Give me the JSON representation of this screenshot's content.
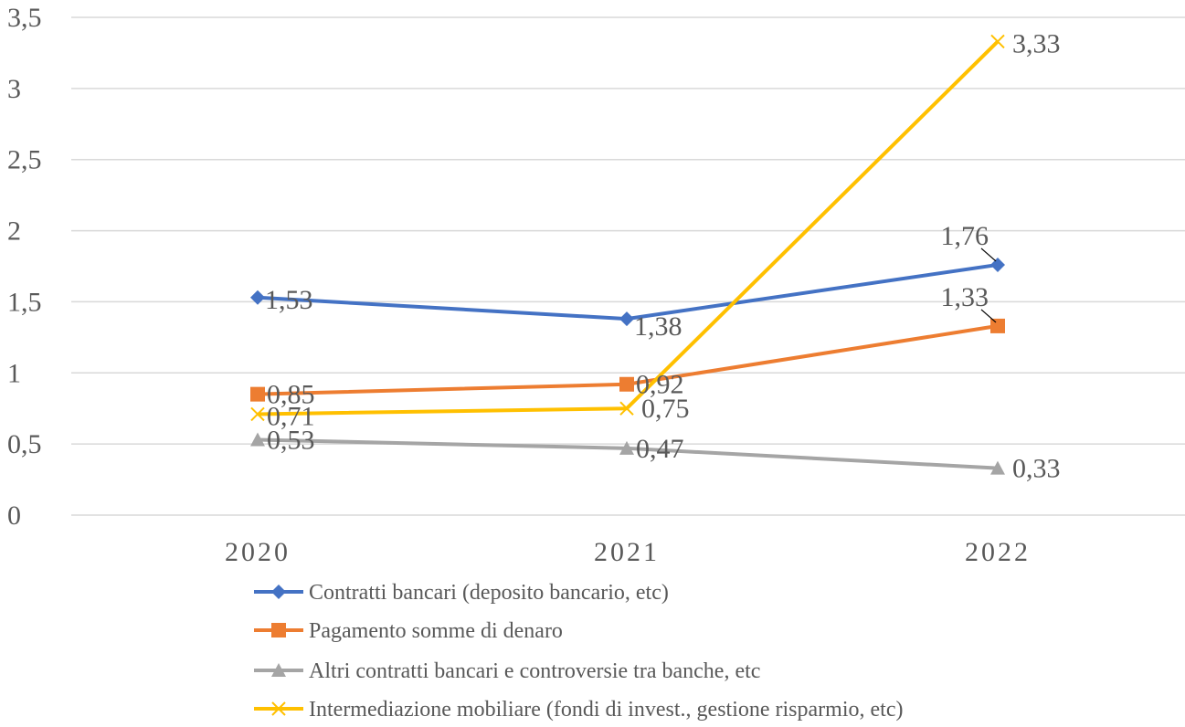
{
  "chart_data": {
    "type": "line",
    "title": "",
    "xlabel": "",
    "ylabel": "",
    "categories": [
      "2020",
      "2021",
      "2022"
    ],
    "ylim": [
      0,
      3.5
    ],
    "yticks": [
      "0",
      "0,5",
      "1",
      "1,5",
      "2",
      "2,5",
      "3",
      "3,5"
    ],
    "ytick_values": [
      0,
      0.5,
      1,
      1.5,
      2,
      2.5,
      3,
      3.5
    ],
    "grid": "horizontal",
    "legend_position": "bottom",
    "series": [
      {
        "name": "Contratti bancari (deposito bancario, etc)",
        "color": "#4472C4",
        "marker": "diamond",
        "values": [
          1.53,
          1.38,
          1.76
        ],
        "labels": [
          "1,53",
          "1,38",
          "1,76"
        ]
      },
      {
        "name": "Pagamento somme di denaro",
        "color": "#ED7D31",
        "marker": "square",
        "values": [
          0.85,
          0.92,
          1.33
        ],
        "labels": [
          "0,85",
          "0,92",
          "1,33"
        ]
      },
      {
        "name": "Altri contratti bancari e controversie tra banche, etc",
        "color": "#A5A5A5",
        "marker": "triangle",
        "values": [
          0.53,
          0.47,
          0.33
        ],
        "labels": [
          "0,53",
          "0,47",
          "0,33"
        ]
      },
      {
        "name": "Intermediazione mobiliare (fondi di invest., gestione risparmio, etc)",
        "color": "#FFC000",
        "marker": "x",
        "values": [
          0.71,
          0.75,
          3.33
        ],
        "labels": [
          "0,71",
          "0,75",
          "3,33"
        ]
      }
    ]
  }
}
